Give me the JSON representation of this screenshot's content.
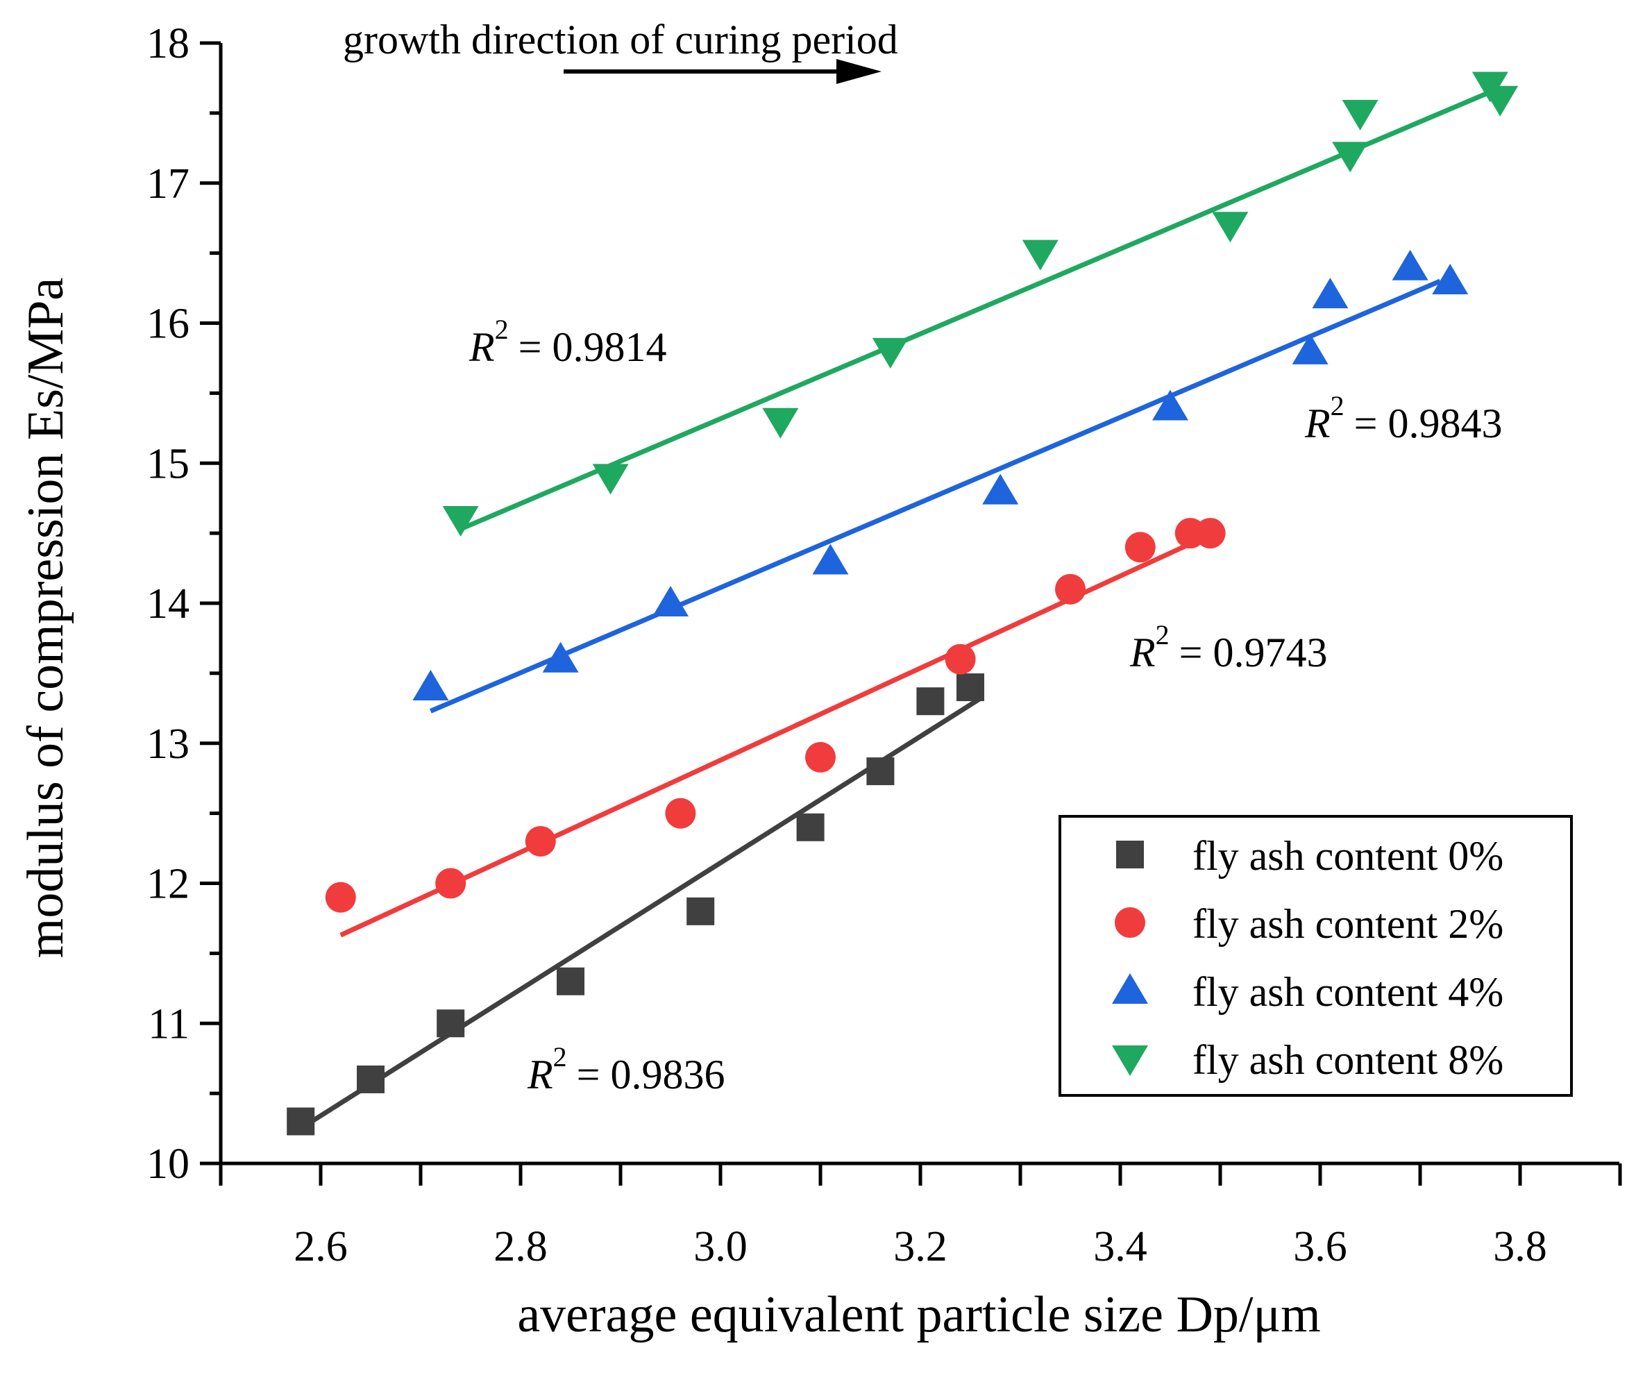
{
  "chart_data": {
    "type": "scatter",
    "xlabel": "average equivalent particle size Dp/μm",
    "ylabel": "modulus of compression Es/MPa",
    "xlim": [
      2.5,
      3.9
    ],
    "ylim": [
      10,
      18
    ],
    "x_ticks": [
      2.6,
      2.8,
      3.0,
      3.2,
      3.4,
      3.6,
      3.8
    ],
    "x_tick_labels": [
      "2.6",
      "2.8",
      "3.0",
      "3.2",
      "3.4",
      "3.6",
      "3.8"
    ],
    "y_ticks": [
      10,
      11,
      12,
      13,
      14,
      15,
      16,
      17,
      18
    ],
    "y_tick_labels": [
      "10",
      "11",
      "12",
      "13",
      "14",
      "15",
      "16",
      "17",
      "18"
    ],
    "grid": false,
    "legend_position": "bottom-right",
    "annotation": "growth direction of curing period",
    "series": [
      {
        "name": "fly ash content 0%",
        "color": "#404040",
        "marker": "square",
        "points": [
          [
            2.58,
            10.3
          ],
          [
            2.65,
            10.6
          ],
          [
            2.73,
            11.0
          ],
          [
            2.85,
            11.3
          ],
          [
            2.98,
            11.8
          ],
          [
            3.09,
            12.4
          ],
          [
            3.16,
            12.8
          ],
          [
            3.21,
            13.3
          ],
          [
            3.25,
            13.4
          ]
        ],
        "fit": [
          [
            2.58,
            10.25
          ],
          [
            3.26,
            13.32
          ]
        ],
        "r2_label": "= 0.9836"
      },
      {
        "name": "fly ash content 2%",
        "color": "#f03c3c",
        "marker": "circle",
        "points": [
          [
            2.62,
            11.9
          ],
          [
            2.73,
            12.0
          ],
          [
            2.82,
            12.3
          ],
          [
            2.96,
            12.5
          ],
          [
            3.1,
            12.9
          ],
          [
            3.24,
            13.6
          ],
          [
            3.35,
            14.1
          ],
          [
            3.42,
            14.4
          ],
          [
            3.47,
            14.5
          ],
          [
            3.49,
            14.5
          ]
        ],
        "fit": [
          [
            2.62,
            11.63
          ],
          [
            3.49,
            14.49
          ]
        ],
        "r2_label": "= 0.9743"
      },
      {
        "name": "fly ash content 4%",
        "color": "#1e64dc",
        "marker": "triangle-up",
        "points": [
          [
            2.71,
            13.4
          ],
          [
            2.84,
            13.6
          ],
          [
            2.95,
            14.0
          ],
          [
            3.11,
            14.3
          ],
          [
            3.28,
            14.8
          ],
          [
            3.45,
            15.4
          ],
          [
            3.59,
            15.8
          ],
          [
            3.61,
            16.2
          ],
          [
            3.69,
            16.4
          ],
          [
            3.73,
            16.3
          ]
        ],
        "fit": [
          [
            2.71,
            13.23
          ],
          [
            3.72,
            16.3
          ]
        ],
        "r2_label": "= 0.9843"
      },
      {
        "name": "fly ash content 8%",
        "color": "#1fa860",
        "marker": "triangle-down",
        "points": [
          [
            2.74,
            14.6
          ],
          [
            2.89,
            14.9
          ],
          [
            3.06,
            15.3
          ],
          [
            3.17,
            15.8
          ],
          [
            3.32,
            16.5
          ],
          [
            3.51,
            16.7
          ],
          [
            3.63,
            17.2
          ],
          [
            3.64,
            17.5
          ],
          [
            3.77,
            17.7
          ],
          [
            3.78,
            17.6
          ]
        ],
        "fit": [
          [
            2.74,
            14.53
          ],
          [
            3.77,
            17.65
          ]
        ],
        "r2_label": "= 0.9814"
      }
    ],
    "r2_symbol": "R",
    "r2_superscript": "2"
  },
  "colors": {
    "axis": "#000000",
    "background": "#ffffff"
  }
}
